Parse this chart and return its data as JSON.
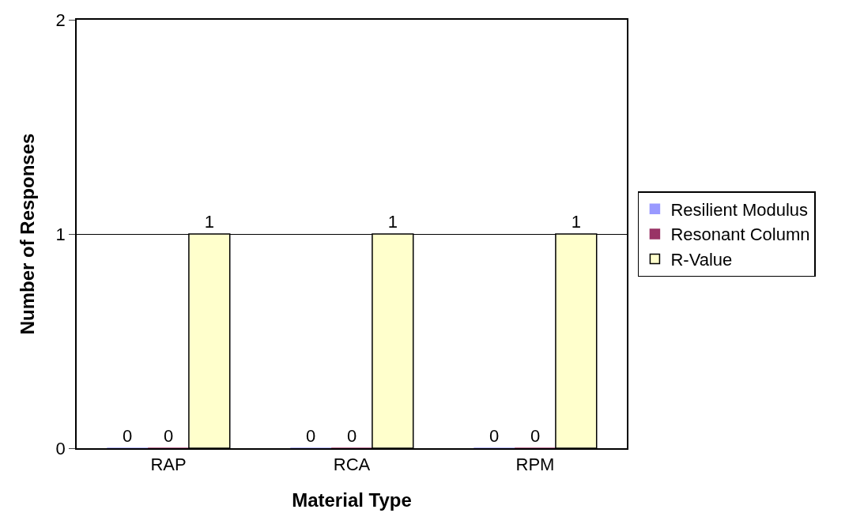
{
  "chart_data": {
    "type": "bar",
    "xlabel": "Material Type",
    "ylabel": "Number of Responses",
    "categories": [
      "RAP",
      "RCA",
      "RPM"
    ],
    "series": [
      {
        "name": "Resilient Modulus",
        "color": "#9999ff",
        "values": [
          0,
          0,
          0
        ]
      },
      {
        "name": "Resonant Column",
        "color": "#993366",
        "values": [
          0,
          0,
          0
        ]
      },
      {
        "name": "R-Value",
        "color": "#ffffcc",
        "values": [
          1,
          1,
          1
        ]
      }
    ],
    "ylim": [
      0,
      2
    ],
    "yticks": [
      0,
      1,
      2
    ],
    "grid": "y",
    "legend": "right",
    "data_labels": true
  }
}
